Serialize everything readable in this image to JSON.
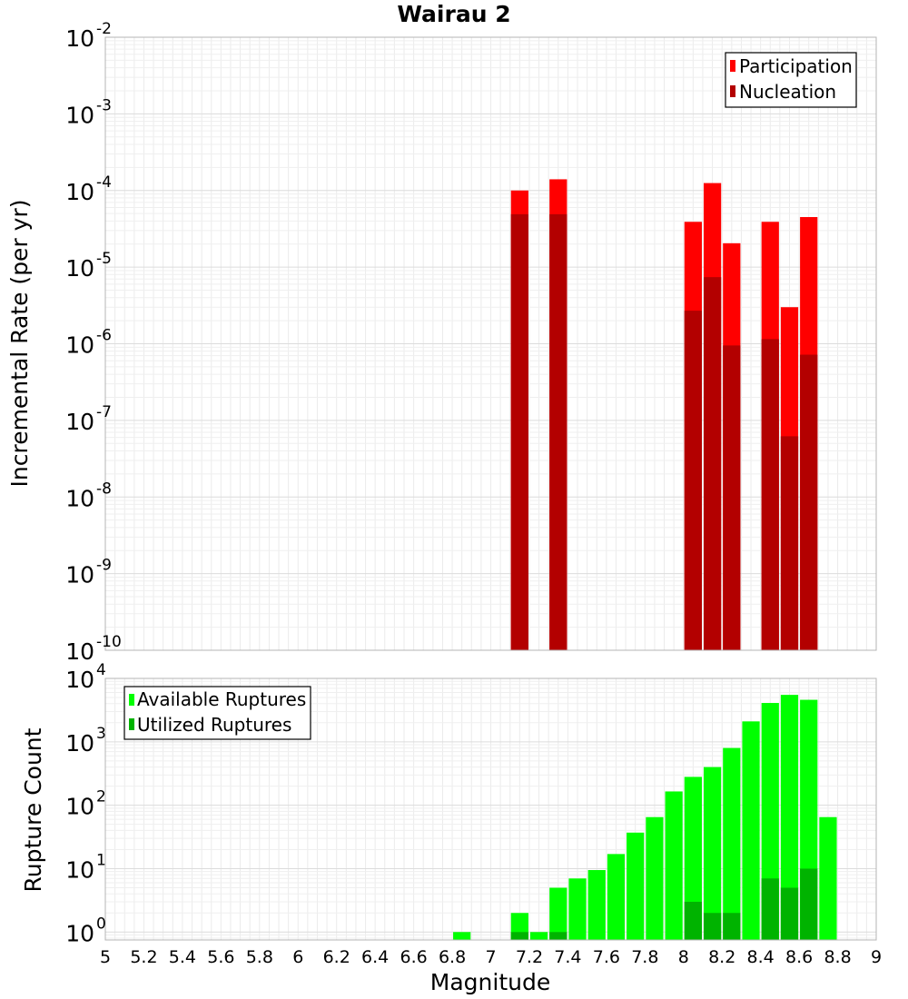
{
  "chart_data": [
    {
      "type": "bar",
      "panel": "top",
      "title": "Wairau 2",
      "ylabel": "Incremental Rate (per yr)",
      "y_scale": "log",
      "ylim": [
        1e-10,
        0.01
      ],
      "xlim": [
        5,
        9
      ],
      "bar_width": 0.1,
      "grid": true,
      "legend_position": "top-right",
      "series": [
        {
          "name": "Participation",
          "color": "#ff0000",
          "points": [
            {
              "x": 7.15,
              "y": 0.0001
            },
            {
              "x": 7.35,
              "y": 0.00014
            },
            {
              "x": 8.05,
              "y": 3.9e-05
            },
            {
              "x": 8.15,
              "y": 0.000125
            },
            {
              "x": 8.25,
              "y": 2.05e-05
            },
            {
              "x": 8.45,
              "y": 3.9e-05
            },
            {
              "x": 8.55,
              "y": 3e-06
            },
            {
              "x": 8.65,
              "y": 4.5e-05
            }
          ]
        },
        {
          "name": "Nucleation",
          "color": "#b30000",
          "points": [
            {
              "x": 7.15,
              "y": 4.9e-05
            },
            {
              "x": 7.35,
              "y": 4.9e-05
            },
            {
              "x": 8.05,
              "y": 2.7e-06
            },
            {
              "x": 8.15,
              "y": 7.4e-06
            },
            {
              "x": 8.25,
              "y": 9.5e-07
            },
            {
              "x": 8.45,
              "y": 1.15e-06
            },
            {
              "x": 8.55,
              "y": 6.2e-08
            },
            {
              "x": 8.65,
              "y": 7.2e-07
            }
          ]
        }
      ]
    },
    {
      "type": "bar",
      "panel": "bottom",
      "xlabel": "Magnitude",
      "ylabel": "Rupture Count",
      "y_scale": "log",
      "ylim": [
        0.75,
        10000
      ],
      "xlim": [
        5,
        9
      ],
      "bar_width": 0.1,
      "grid": true,
      "legend_position": "top-left",
      "series": [
        {
          "name": "Available Ruptures",
          "color": "#00ff00",
          "points": [
            {
              "x": 6.85,
              "y": 1
            },
            {
              "x": 7.15,
              "y": 2
            },
            {
              "x": 7.25,
              "y": 1
            },
            {
              "x": 7.35,
              "y": 5
            },
            {
              "x": 7.45,
              "y": 7
            },
            {
              "x": 7.55,
              "y": 9.5
            },
            {
              "x": 7.65,
              "y": 17
            },
            {
              "x": 7.75,
              "y": 37
            },
            {
              "x": 7.85,
              "y": 65
            },
            {
              "x": 7.95,
              "y": 165
            },
            {
              "x": 8.05,
              "y": 280
            },
            {
              "x": 8.15,
              "y": 400
            },
            {
              "x": 8.25,
              "y": 800
            },
            {
              "x": 8.35,
              "y": 2100
            },
            {
              "x": 8.45,
              "y": 4100
            },
            {
              "x": 8.55,
              "y": 5500
            },
            {
              "x": 8.65,
              "y": 4600
            },
            {
              "x": 8.75,
              "y": 65
            }
          ]
        },
        {
          "name": "Utilized Ruptures",
          "color": "#00b300",
          "points": [
            {
              "x": 7.15,
              "y": 1
            },
            {
              "x": 7.35,
              "y": 1
            },
            {
              "x": 8.05,
              "y": 3
            },
            {
              "x": 8.15,
              "y": 2
            },
            {
              "x": 8.25,
              "y": 2
            },
            {
              "x": 8.45,
              "y": 7
            },
            {
              "x": 8.55,
              "y": 5
            },
            {
              "x": 8.65,
              "y": 10
            }
          ]
        }
      ],
      "x_ticks": [
        5,
        5.2,
        5.4,
        5.6,
        5.8,
        6,
        6.2,
        6.4,
        6.6,
        6.8,
        7,
        7.2,
        7.4,
        7.6,
        7.8,
        8,
        8.2,
        8.4,
        8.6,
        8.8,
        9
      ]
    }
  ]
}
